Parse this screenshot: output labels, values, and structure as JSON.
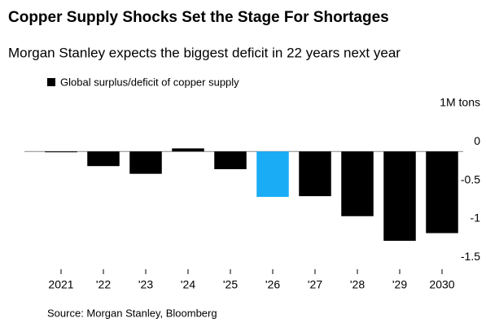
{
  "chart_data": {
    "type": "bar",
    "title": "Copper Supply Shocks Set the Stage For Shortages",
    "subtitle": "Morgan Stanley expects the biggest deficit in 22 years next year",
    "legend": "Global surplus/deficit of copper supply",
    "y_unit": "1M tons",
    "source": "Source: Morgan Stanley, Bloomberg",
    "categories": [
      "2021",
      "'22",
      "'23",
      "'24",
      "'25",
      "'26",
      "'27",
      "'28",
      "'29",
      "2030"
    ],
    "values": [
      -0.01,
      -0.19,
      -0.29,
      0.04,
      -0.23,
      -0.59,
      -0.58,
      -0.84,
      -1.16,
      -1.06
    ],
    "color": "#000000",
    "highlight_color": "#1aadf5",
    "highlight_index": 5,
    "ylim": [
      -1.55,
      0.15
    ],
    "yticks": [
      0,
      -0.5,
      -1,
      -1.5
    ]
  }
}
